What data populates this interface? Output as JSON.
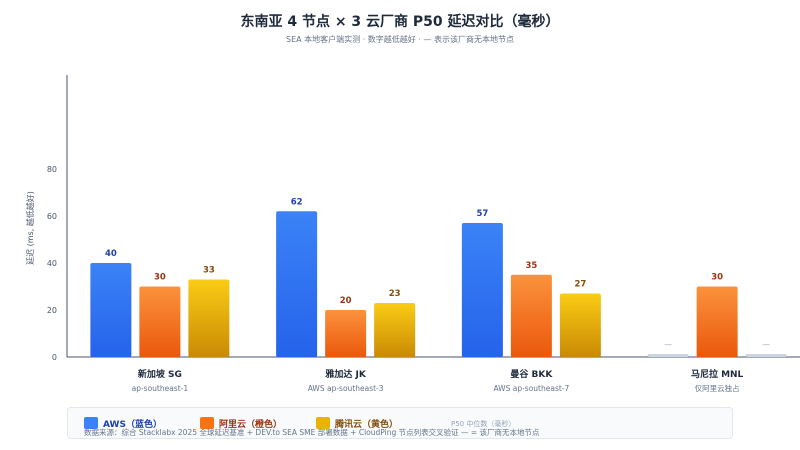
{
  "title": "东南亚 4 节点 × 3 云厂商 P50 延迟对比（毫秒）",
  "subtitle": "SEA 本地客户端实测 · 数字越低越好 · — 表示该厂商无本地节点",
  "legend_note": "P50 中位数（毫秒）",
  "source_note": "数据来源：综合 Stacklabx 2025 全球延迟基准 + DEV.to SEA SME 部署数据 + CloudPing 节点列表交叉验证 — = 该厂商无本地节点",
  "colors": {
    "aws": "#3b82f6",
    "aliyun": "#f97316",
    "tencent": "#eab308",
    "missing": "#cbd5e1"
  },
  "chart_data": {
    "type": "bar",
    "title": "东南亚 4 节点 × 3 云厂商 P50 延迟对比（毫秒）",
    "ylabel": "延迟 (ms, 越低越好)",
    "ylim": [
      0,
      120
    ],
    "yticks": [
      0,
      20,
      40,
      60,
      80
    ],
    "grid": false,
    "legend_position": "bottom",
    "categories": [
      "新加坡 SG",
      "雅加达 JK",
      "曼谷 BKK",
      "马尼拉 MNL"
    ],
    "category_sublabels": [
      "ap-southeast-1",
      "AWS ap-southeast-3",
      "AWS ap-southeast-7",
      "仅阿里云独占"
    ],
    "missing_label": "—",
    "series": [
      {
        "name": "AWS（蓝色）",
        "values": [
          40,
          62,
          57,
          null
        ]
      },
      {
        "name": "阿里云（橙色）",
        "values": [
          30,
          20,
          35,
          30
        ]
      },
      {
        "name": "腾讯云（黄色）",
        "values": [
          33,
          23,
          27,
          null
        ]
      }
    ]
  }
}
